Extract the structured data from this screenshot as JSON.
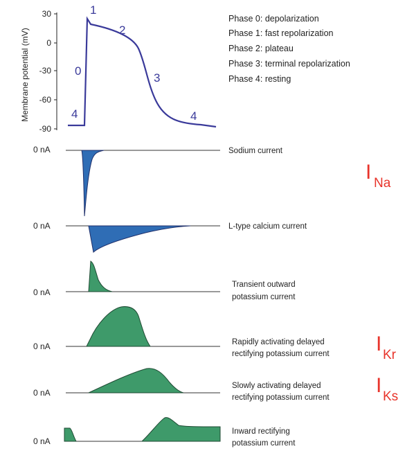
{
  "action_potential": {
    "y_axis_label": "Membrane potential (mV)",
    "y_ticks": [
      "30",
      "0",
      "-30",
      "-60",
      "-90"
    ],
    "phase_numbers": [
      "0",
      "1",
      "2",
      "3",
      "4",
      "4"
    ],
    "phases": [
      "Phase 0: depolarization",
      "Phase 1: fast repolarization",
      "Phase 2: plateau",
      "Phase 3: terminal repolarization",
      "Phase 4: resting"
    ],
    "trace_color": "#3a3a9a"
  },
  "currents": [
    {
      "zero_label": "0 nA",
      "name_lines": [
        "Sodium current"
      ],
      "symbol_main": "I",
      "symbol_sub": "Na",
      "fill": "#2f6db5",
      "direction": "inward"
    },
    {
      "zero_label": "0 nA",
      "name_lines": [
        "L-type calcium current"
      ],
      "symbol_main": "",
      "symbol_sub": "",
      "fill": "#2f6db5",
      "direction": "inward"
    },
    {
      "zero_label": "0 nA",
      "name_lines": [
        "Transient outward",
        "potassium current"
      ],
      "symbol_main": "",
      "symbol_sub": "",
      "fill": "#3e9a6a",
      "direction": "outward"
    },
    {
      "zero_label": "0 nA",
      "name_lines": [
        "Rapidly activating delayed",
        "rectifying potassium current"
      ],
      "symbol_main": "I",
      "symbol_sub": "Kr",
      "fill": "#3e9a6a",
      "direction": "outward"
    },
    {
      "zero_label": "0 nA",
      "name_lines": [
        "Slowly activating delayed",
        "rectifying potassium current"
      ],
      "symbol_main": "I",
      "symbol_sub": "Ks",
      "fill": "#3e9a6a",
      "direction": "outward"
    },
    {
      "zero_label": "0 nA",
      "name_lines": [
        "Inward rectifying",
        "potassium current"
      ],
      "symbol_main": "",
      "symbol_sub": "",
      "fill": "#3e9a6a",
      "direction": "outward"
    }
  ]
}
